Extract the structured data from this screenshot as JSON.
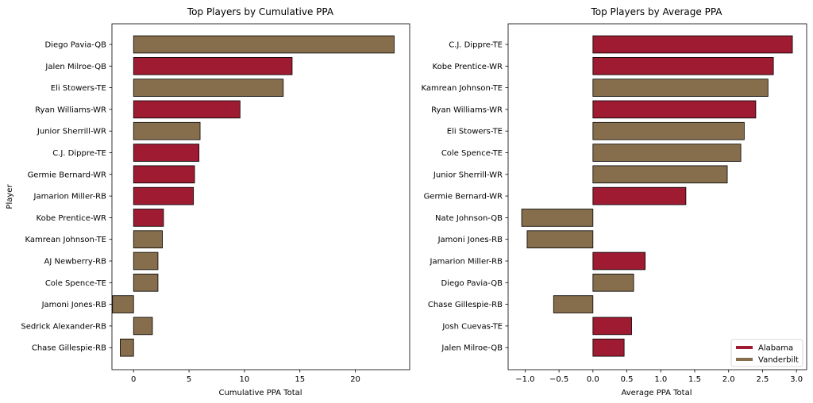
{
  "colors": {
    "Alabama": "#9E1B32",
    "Vanderbilt": "#866D4B"
  },
  "chart_data": [
    {
      "type": "bar",
      "orientation": "horizontal",
      "title": "Top Players by Cumulative PPA",
      "xlabel": "Cumulative PPA Total",
      "ylabel": "Player",
      "xlim": [
        -1.95,
        24.9
      ],
      "xticks": [
        0,
        5,
        10,
        15,
        20
      ],
      "xtick_labels": [
        "0",
        "5",
        "10",
        "15",
        "20"
      ],
      "grid": false,
      "categories": [
        "Diego Pavia-QB",
        "Jalen Milroe-QB",
        "Eli Stowers-TE",
        "Ryan Williams-WR",
        "Junior Sherrill-WR",
        "C.J. Dippre-TE",
        "Germie Bernard-WR",
        "Jamarion Miller-RB",
        "Kobe Prentice-WR",
        "Kamrean Johnson-TE",
        "AJ Newberry-RB",
        "Cole Spence-TE",
        "Jamoni Jones-RB",
        "Sedrick Alexander-RB",
        "Chase Gillespie-RB"
      ],
      "values": [
        23.5,
        14.3,
        13.5,
        9.6,
        6.0,
        5.9,
        5.5,
        5.4,
        2.7,
        2.6,
        2.2,
        2.2,
        -1.9,
        1.7,
        -1.2
      ],
      "teams": [
        "Vanderbilt",
        "Alabama",
        "Vanderbilt",
        "Alabama",
        "Vanderbilt",
        "Alabama",
        "Alabama",
        "Alabama",
        "Alabama",
        "Vanderbilt",
        "Vanderbilt",
        "Vanderbilt",
        "Vanderbilt",
        "Vanderbilt",
        "Vanderbilt"
      ]
    },
    {
      "type": "bar",
      "orientation": "horizontal",
      "title": "Top Players by Average PPA",
      "xlabel": "Average PPA Total",
      "ylabel": "",
      "xlim": [
        -1.25,
        3.15
      ],
      "xticks": [
        -1.0,
        -0.5,
        0.0,
        0.5,
        1.0,
        1.5,
        2.0,
        2.5,
        3.0
      ],
      "xtick_labels": [
        "−1.0",
        "−0.5",
        "0.0",
        "0.5",
        "1.0",
        "1.5",
        "2.0",
        "2.5",
        "3.0"
      ],
      "grid": false,
      "categories": [
        "C.J. Dippre-TE",
        "Kobe Prentice-WR",
        "Kamrean Johnson-TE",
        "Ryan Williams-WR",
        "Eli Stowers-TE",
        "Cole Spence-TE",
        "Junior Sherrill-WR",
        "Germie Bernard-WR",
        "Nate Johnson-QB",
        "Jamoni Jones-RB",
        "Jamarion Miller-RB",
        "Diego Pavia-QB",
        "Chase Gillespie-RB",
        "Josh Cuevas-TE",
        "Jalen Milroe-QB"
      ],
      "values": [
        2.94,
        2.66,
        2.58,
        2.4,
        2.23,
        2.18,
        1.98,
        1.37,
        -1.05,
        -0.97,
        0.77,
        0.6,
        -0.58,
        0.57,
        0.46
      ],
      "teams": [
        "Alabama",
        "Alabama",
        "Vanderbilt",
        "Alabama",
        "Vanderbilt",
        "Vanderbilt",
        "Vanderbilt",
        "Alabama",
        "Vanderbilt",
        "Vanderbilt",
        "Alabama",
        "Vanderbilt",
        "Vanderbilt",
        "Alabama",
        "Alabama"
      ],
      "legend": {
        "placement": "bottom-right",
        "entries": [
          "Alabama",
          "Vanderbilt"
        ]
      }
    }
  ]
}
